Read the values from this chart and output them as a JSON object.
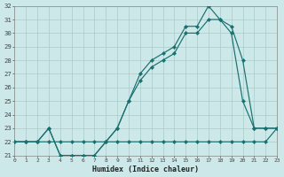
{
  "x": [
    0,
    1,
    2,
    3,
    4,
    5,
    6,
    7,
    8,
    9,
    10,
    11,
    12,
    13,
    14,
    15,
    16,
    17,
    18,
    19,
    20,
    21,
    22,
    23
  ],
  "line1": [
    22,
    22,
    22,
    23,
    21,
    21,
    21,
    21,
    22,
    23,
    25,
    27,
    28,
    28.5,
    29,
    30.5,
    30.5,
    32,
    31,
    30.5,
    28,
    23,
    23,
    23
  ],
  "line2": [
    22,
    22,
    22,
    23,
    21,
    21,
    21,
    21,
    22,
    23,
    25,
    26.5,
    27.5,
    28,
    28.5,
    30,
    30,
    31,
    31,
    30,
    25,
    23,
    23,
    23
  ],
  "line3": [
    22,
    22,
    22,
    22,
    22,
    22,
    22,
    22,
    22,
    22,
    22,
    22,
    22,
    22,
    22,
    22,
    22,
    22,
    22,
    22,
    22,
    22,
    22,
    23
  ],
  "bg_color": "#cce8e8",
  "line_color": "#1a7070",
  "grid_color": "#aacccc",
  "xlabel": "Humidex (Indice chaleur)",
  "ylim_min": 21,
  "ylim_max": 32,
  "xlim_min": 0,
  "xlim_max": 23
}
